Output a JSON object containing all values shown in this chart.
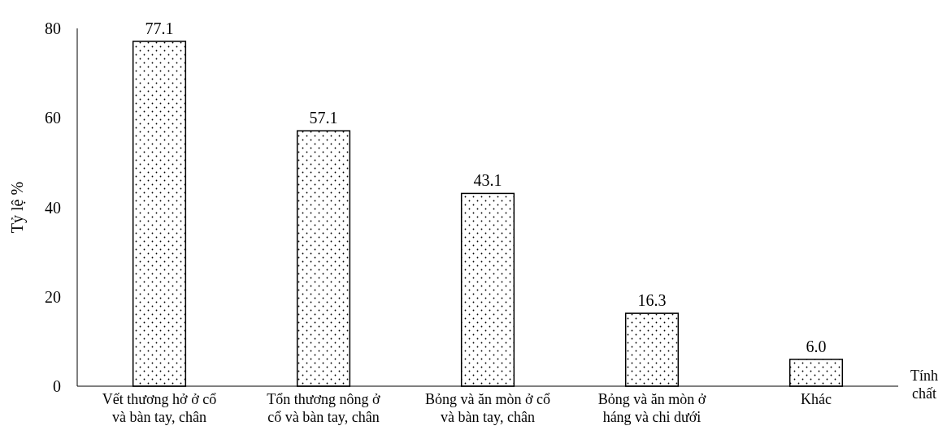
{
  "chart_data": {
    "type": "bar",
    "xlabel": "Tính chất",
    "ylabel": "Tỷ lệ %",
    "categories": [
      "Vết thương hở ở cổ và bàn tay, chân",
      "Tổn thương nông ở cổ và bàn tay, chân",
      "Bỏng và ăn mòn ở cổ và bàn tay, chân",
      "Bỏng và ăn mòn ở háng và chi dưới",
      "Khác"
    ],
    "values": [
      77.1,
      57.1,
      43.1,
      16.3,
      6.0
    ],
    "value_labels": [
      "77.1",
      "57.1",
      "43.1",
      "16.3",
      "6.0"
    ],
    "color": "#ffffff",
    "ylim": [
      0,
      80
    ],
    "yticks": [
      0,
      20,
      40,
      60,
      80
    ],
    "grid": false
  }
}
